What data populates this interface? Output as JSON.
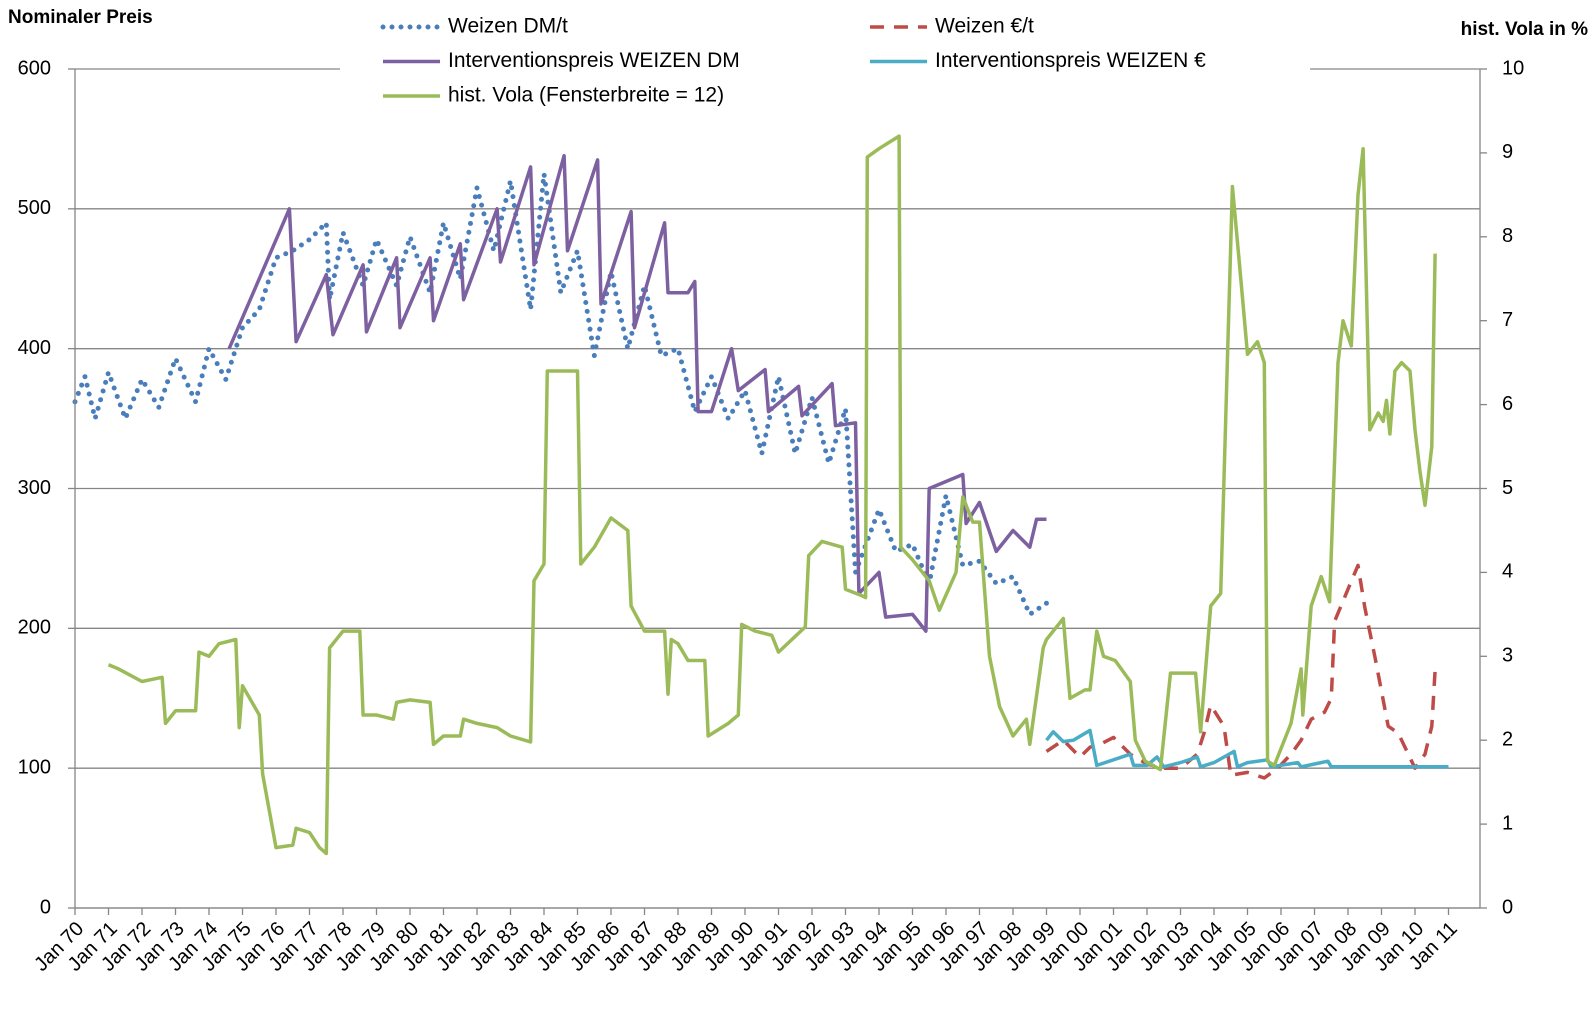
{
  "chart_data": {
    "type": "line",
    "ylabel": "Nominaler Preis",
    "y2label": "hist. Vola in %",
    "xlim": [
      1970,
      2012
    ],
    "ylim": [
      0,
      600
    ],
    "y2lim": [
      0,
      10
    ],
    "yticks": [
      0,
      100,
      200,
      300,
      400,
      500,
      600
    ],
    "y2ticks": [
      0,
      1,
      2,
      3,
      4,
      5,
      6,
      7,
      8,
      9,
      10
    ],
    "xticks": [
      {
        "value": 1970,
        "label": "Jan 70"
      },
      {
        "value": 1971,
        "label": "Jan 71"
      },
      {
        "value": 1972,
        "label": "Jan 72"
      },
      {
        "value": 1973,
        "label": "Jan 73"
      },
      {
        "value": 1974,
        "label": "Jan 74"
      },
      {
        "value": 1975,
        "label": "Jan 75"
      },
      {
        "value": 1976,
        "label": "Jan 76"
      },
      {
        "value": 1977,
        "label": "Jan 77"
      },
      {
        "value": 1978,
        "label": "Jan 78"
      },
      {
        "value": 1979,
        "label": "Jan 79"
      },
      {
        "value": 1980,
        "label": "Jan 80"
      },
      {
        "value": 1981,
        "label": "Jan 81"
      },
      {
        "value": 1982,
        "label": "Jan 82"
      },
      {
        "value": 1983,
        "label": "Jan 83"
      },
      {
        "value": 1984,
        "label": "Jan 84"
      },
      {
        "value": 1985,
        "label": "Jan 85"
      },
      {
        "value": 1986,
        "label": "Jan 86"
      },
      {
        "value": 1987,
        "label": "Jan 87"
      },
      {
        "value": 1988,
        "label": "Jan 88"
      },
      {
        "value": 1989,
        "label": "Jan 89"
      },
      {
        "value": 1990,
        "label": "Jan 90"
      },
      {
        "value": 1991,
        "label": "Jan 91"
      },
      {
        "value": 1992,
        "label": "Jan 92"
      },
      {
        "value": 1993,
        "label": "Jan 93"
      },
      {
        "value": 1994,
        "label": "Jan 94"
      },
      {
        "value": 1995,
        "label": "Jan 95"
      },
      {
        "value": 1996,
        "label": "Jan 96"
      },
      {
        "value": 1997,
        "label": "Jan 97"
      },
      {
        "value": 1998,
        "label": "Jan 98"
      },
      {
        "value": 1999,
        "label": "Jan 99"
      },
      {
        "value": 2000,
        "label": "Jan 00"
      },
      {
        "value": 2001,
        "label": "Jan 01"
      },
      {
        "value": 2002,
        "label": "Jan 02"
      },
      {
        "value": 2003,
        "label": "Jan 03"
      },
      {
        "value": 2004,
        "label": "Jan 04"
      },
      {
        "value": 2005,
        "label": "Jan 05"
      },
      {
        "value": 2006,
        "label": "Jan 06"
      },
      {
        "value": 2007,
        "label": "Jan 07"
      },
      {
        "value": 2008,
        "label": "Jan 08"
      },
      {
        "value": 2009,
        "label": "Jan 09"
      },
      {
        "value": 2010,
        "label": "Jan 10"
      },
      {
        "value": 2011,
        "label": "Jan 11"
      }
    ],
    "grid": true,
    "series": [
      {
        "name": "Weizen DM/t",
        "color": "#4a7ebb",
        "dash": "dotted",
        "x": [
          1970.0,
          1970.3,
          1970.6,
          1971.0,
          1971.5,
          1972.0,
          1972.5,
          1973.0,
          1973.6,
          1974.0,
          1974.5,
          1975.0,
          1975.5,
          1976.0,
          1976.5,
          1977.0,
          1977.5,
          1977.6,
          1978.0,
          1978.6,
          1979.0,
          1979.6,
          1980.0,
          1980.6,
          1981.0,
          1981.5,
          1982.0,
          1982.5,
          1983.0,
          1983.6,
          1984.0,
          1984.5,
          1985.0,
          1985.5,
          1986.0,
          1986.5,
          1987.0,
          1987.5,
          1988.0,
          1988.5,
          1989.0,
          1989.5,
          1990.0,
          1990.5,
          1991.0,
          1991.5,
          1992.0,
          1992.5,
          1993.0,
          1993.3,
          1994.0,
          1994.5,
          1995.0,
          1995.5,
          1996.0,
          1996.5,
          1997.0,
          1997.5,
          1998.0,
          1998.5,
          1999.0
        ],
        "values": [
          362,
          380,
          350,
          383,
          350,
          378,
          358,
          393,
          362,
          400,
          378,
          415,
          428,
          465,
          470,
          478,
          490,
          435,
          483,
          445,
          478,
          445,
          480,
          440,
          490,
          450,
          515,
          470,
          520,
          428,
          525,
          440,
          470,
          395,
          455,
          400,
          445,
          395,
          400,
          355,
          380,
          350,
          370,
          325,
          380,
          325,
          365,
          318,
          357,
          240,
          285,
          255,
          260,
          232,
          295,
          245,
          248,
          232,
          237,
          210,
          218
        ]
      },
      {
        "name": "Weizen €/t",
        "color": "#be4b48",
        "dash": "dashed",
        "x": [
          1999.0,
          1999.5,
          2000.0,
          2000.3,
          2000.6,
          2001.0,
          2001.5,
          2002.0,
          2002.5,
          2003.0,
          2003.5,
          2003.7,
          2003.9,
          2004.3,
          2004.5,
          2005.0,
          2005.5,
          2005.9,
          2006.3,
          2006.6,
          2006.9,
          2007.3,
          2007.5,
          2007.6,
          2008.0,
          2008.3,
          2008.5,
          2008.8,
          2009.2,
          2009.5,
          2010.0,
          2010.3,
          2010.5,
          2010.6
        ],
        "values": [
          112,
          120,
          108,
          115,
          117,
          122,
          110,
          103,
          100,
          100,
          110,
          125,
          145,
          130,
          95,
          97,
          93,
          100,
          110,
          120,
          135,
          140,
          150,
          205,
          228,
          245,
          215,
          180,
          130,
          125,
          100,
          110,
          130,
          170
        ]
      },
      {
        "name": "Interventionspreis WEIZEN DM",
        "color": "#7d60a0",
        "dash": "solid",
        "x": [
          1974.6,
          1976.4,
          1976.6,
          1977.5,
          1977.7,
          1978.6,
          1978.7,
          1979.6,
          1979.7,
          1980.6,
          1980.7,
          1981.5,
          1981.6,
          1982.6,
          1982.7,
          1983.6,
          1983.7,
          1984.6,
          1984.7,
          1985.6,
          1985.7,
          1986.6,
          1986.7,
          1987.6,
          1987.7,
          1988.3,
          1988.5,
          1988.6,
          1989.0,
          1989.6,
          1989.8,
          1990.6,
          1990.7,
          1991.6,
          1991.7,
          1992.6,
          1992.7,
          1993.3,
          1993.4,
          1994.0,
          1994.2,
          1995.0,
          1995.4,
          1995.5,
          1996.5,
          1996.6,
          1997.0,
          1997.5,
          1998.0,
          1998.5,
          1998.7,
          1999.0
        ],
        "values": [
          400,
          500,
          405,
          453,
          410,
          460,
          412,
          465,
          415,
          465,
          420,
          475,
          435,
          500,
          462,
          530,
          460,
          538,
          470,
          535,
          432,
          498,
          415,
          490,
          440,
          440,
          448,
          355,
          355,
          400,
          370,
          385,
          355,
          373,
          352,
          375,
          345,
          347,
          225,
          240,
          208,
          210,
          198,
          300,
          310,
          275,
          290,
          255,
          270,
          258,
          278,
          278
        ]
      },
      {
        "name": "Interventionspreis WEIZEN €",
        "color": "#4bacc6",
        "dash": "solid",
        "x": [
          1999.0,
          1999.2,
          1999.5,
          1999.8,
          2000.3,
          2000.5,
          2001.5,
          2001.6,
          2002.0,
          2002.3,
          2002.5,
          2003.0,
          2003.5,
          2003.6,
          2004.0,
          2004.6,
          2004.7,
          2005.0,
          2005.6,
          2005.7,
          2006.5,
          2006.6,
          2007.0,
          2007.4,
          2007.5,
          2011.0
        ],
        "values": [
          120,
          126,
          119,
          120,
          127,
          102,
          110,
          102,
          102,
          108,
          101,
          104,
          108,
          101,
          104,
          112,
          101,
          104,
          106,
          101,
          104,
          101,
          103,
          105,
          101,
          101
        ]
      },
      {
        "name": "hist. Vola (Fensterbreite = 12)",
        "color": "#9bbb59",
        "dash": "solid",
        "axis": "y2",
        "x": [
          1971.0,
          1971.3,
          1972.0,
          1972.6,
          1972.7,
          1973.0,
          1973.6,
          1973.7,
          1974.0,
          1974.3,
          1974.8,
          1974.9,
          1975.0,
          1975.5,
          1975.6,
          1976.0,
          1976.5,
          1976.6,
          1977.0,
          1977.3,
          1977.5,
          1977.6,
          1978.0,
          1978.5,
          1978.6,
          1979.0,
          1979.5,
          1979.6,
          1980.0,
          1980.6,
          1980.7,
          1981.0,
          1981.5,
          1981.6,
          1982.0,
          1982.6,
          1983.0,
          1983.6,
          1983.7,
          1984.0,
          1984.1,
          1985.0,
          1985.1,
          1985.5,
          1986.0,
          1986.5,
          1986.6,
          1987.0,
          1987.6,
          1987.7,
          1987.8,
          1988.0,
          1988.3,
          1988.8,
          1988.9,
          1989.5,
          1989.8,
          1989.9,
          1990.3,
          1990.8,
          1991.0,
          1991.8,
          1991.9,
          1992.3,
          1992.9,
          1993.0,
          1993.5,
          1993.6,
          1993.65,
          1994.0,
          1994.6,
          1994.65,
          1995.0,
          1995.5,
          1995.8,
          1996.3,
          1996.5,
          1996.8,
          1997.0,
          1997.3,
          1997.6,
          1998.0,
          1998.4,
          1998.5,
          1998.9,
          1999.0,
          1999.5,
          1999.7,
          2000.15,
          2000.3,
          2000.5,
          2000.7,
          2001.05,
          2001.5,
          2001.65,
          2001.95,
          2002.4,
          2002.7,
          2003.45,
          2003.6,
          2003.9,
          2004.2,
          2004.55,
          2004.8,
          2005.0,
          2005.3,
          2005.5,
          2005.6,
          2005.8,
          2006.0,
          2006.3,
          2006.6,
          2006.65,
          2006.9,
          2007.2,
          2007.45,
          2007.7,
          2007.85,
          2008.1,
          2008.3,
          2008.45,
          2008.65,
          2008.9,
          2009.05,
          2009.15,
          2009.25,
          2009.4,
          2009.6,
          2009.85,
          2010.0,
          2010.15,
          2010.3,
          2010.5,
          2010.6
        ],
        "values": [
          2.9,
          2.85,
          2.7,
          2.75,
          2.2,
          2.35,
          2.35,
          3.05,
          3.0,
          3.15,
          3.2,
          2.15,
          2.65,
          2.3,
          1.6,
          0.72,
          0.75,
          0.95,
          0.9,
          0.72,
          0.65,
          3.1,
          3.3,
          3.3,
          2.3,
          2.3,
          2.25,
          2.45,
          2.48,
          2.45,
          1.95,
          2.05,
          2.05,
          2.25,
          2.2,
          2.15,
          2.05,
          1.98,
          3.9,
          4.1,
          6.4,
          6.4,
          4.1,
          4.3,
          4.65,
          4.5,
          3.6,
          3.3,
          3.3,
          2.55,
          3.2,
          3.15,
          2.95,
          2.95,
          2.05,
          2.2,
          2.3,
          3.38,
          3.3,
          3.25,
          3.05,
          3.35,
          4.2,
          4.37,
          4.3,
          3.8,
          3.72,
          3.7,
          8.95,
          9.05,
          9.2,
          4.3,
          4.15,
          3.9,
          3.55,
          4.0,
          4.9,
          4.6,
          4.6,
          3.0,
          2.4,
          2.05,
          2.25,
          1.95,
          3.1,
          3.2,
          3.45,
          2.5,
          2.6,
          2.6,
          3.3,
          3.0,
          2.95,
          2.7,
          2.0,
          1.75,
          1.65,
          2.8,
          2.8,
          2.1,
          3.6,
          3.75,
          8.6,
          7.5,
          6.6,
          6.75,
          6.5,
          1.75,
          1.7,
          1.9,
          2.2,
          2.85,
          2.3,
          3.6,
          3.95,
          3.65,
          6.5,
          7.0,
          6.7,
          8.5,
          9.05,
          5.7,
          5.9,
          5.8,
          6.05,
          5.65,
          6.4,
          6.5,
          6.4,
          5.7,
          5.2,
          4.8,
          5.5,
          7.8
        ]
      }
    ]
  }
}
